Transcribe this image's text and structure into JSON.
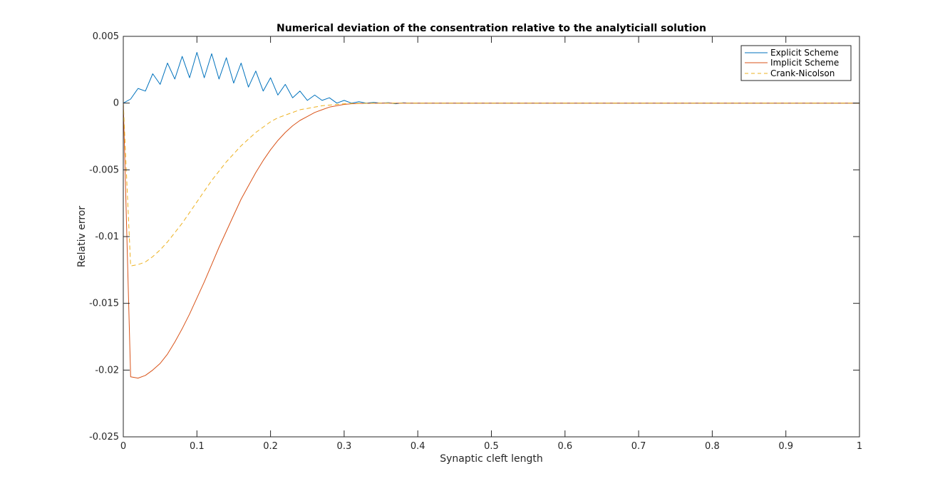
{
  "chart_data": {
    "type": "line",
    "title": "Numerical deviation of the consentration relative to the analyticiall solution",
    "xlabel": "Synaptic cleft length",
    "ylabel": "Relativ error",
    "xlim": [
      0,
      1
    ],
    "ylim": [
      -0.025,
      0.005
    ],
    "xticks": [
      0,
      0.1,
      0.2,
      0.3,
      0.4,
      0.5,
      0.6,
      0.7,
      0.8,
      0.9,
      1
    ],
    "xtick_labels": [
      "0",
      "0.1",
      "0.2",
      "0.3",
      "0.4",
      "0.5",
      "0.6",
      "0.7",
      "0.8",
      "0.9",
      "1"
    ],
    "yticks": [
      0.005,
      0,
      -0.005,
      -0.01,
      -0.015,
      -0.02,
      -0.025
    ],
    "ytick_labels": [
      "0.005",
      "0",
      "-0.005",
      "-0.01",
      "-0.015",
      "-0.02",
      "-0.025"
    ],
    "grid": false,
    "legend_position": "top-right",
    "series": [
      {
        "name": "Explicit Scheme",
        "color": "#0072BD",
        "dash": "solid",
        "x": [
          0,
          0.01,
          0.02,
          0.03,
          0.04,
          0.05,
          0.06,
          0.07,
          0.08,
          0.09,
          0.1,
          0.11,
          0.12,
          0.13,
          0.14,
          0.15,
          0.16,
          0.17,
          0.18,
          0.19,
          0.2,
          0.21,
          0.22,
          0.23,
          0.24,
          0.25,
          0.26,
          0.27,
          0.28,
          0.29,
          0.3,
          0.31,
          0.32,
          0.33,
          0.34,
          0.35,
          0.36,
          0.37,
          0.38,
          0.39,
          0.4,
          0.45,
          0.5,
          0.6,
          0.7,
          0.8,
          0.9,
          1.0
        ],
        "y": [
          0,
          0.0003,
          0.0011,
          0.0009,
          0.0022,
          0.0014,
          0.003,
          0.0018,
          0.0035,
          0.0019,
          0.0038,
          0.0019,
          0.0037,
          0.0018,
          0.0034,
          0.0015,
          0.003,
          0.0012,
          0.0024,
          0.0009,
          0.0019,
          0.0006,
          0.0014,
          0.0004,
          0.0009,
          0.0002,
          0.0006,
          0.0002,
          0.0004,
          0,
          0.0002,
          0,
          0.0001,
          0,
          5e-05,
          0,
          3e-05,
          -5e-05,
          2e-05,
          0,
          0,
          0,
          0,
          0,
          0,
          0,
          0,
          0
        ]
      },
      {
        "name": "Implicit Scheme",
        "color": "#D95319",
        "dash": "solid",
        "x": [
          0,
          0.01,
          0.02,
          0.03,
          0.04,
          0.05,
          0.06,
          0.07,
          0.08,
          0.09,
          0.1,
          0.11,
          0.12,
          0.13,
          0.14,
          0.15,
          0.16,
          0.17,
          0.18,
          0.19,
          0.2,
          0.21,
          0.22,
          0.23,
          0.24,
          0.25,
          0.26,
          0.27,
          0.28,
          0.29,
          0.3,
          0.31,
          0.32,
          0.33,
          0.34,
          0.35,
          0.4,
          0.5,
          0.6,
          0.7,
          0.8,
          0.9,
          1.0
        ],
        "y": [
          0,
          -0.0205,
          -0.0206,
          -0.0204,
          -0.02,
          -0.0195,
          -0.0188,
          -0.0179,
          -0.0169,
          -0.0158,
          -0.0146,
          -0.0134,
          -0.0121,
          -0.0108,
          -0.0096,
          -0.0084,
          -0.0072,
          -0.0062,
          -0.0052,
          -0.0043,
          -0.0035,
          -0.0028,
          -0.0022,
          -0.0017,
          -0.0013,
          -0.001,
          -0.0007,
          -0.0005,
          -0.0003,
          -0.0002,
          -0.0001,
          -5e-05,
          -3e-05,
          -2e-05,
          -1e-05,
          0,
          0,
          0,
          0,
          0,
          0,
          0,
          0
        ]
      },
      {
        "name": "Crank-Nicolson",
        "color": "#EDB120",
        "dash": "dashed",
        "x": [
          0,
          0.01,
          0.02,
          0.03,
          0.04,
          0.05,
          0.06,
          0.07,
          0.08,
          0.09,
          0.1,
          0.11,
          0.12,
          0.13,
          0.14,
          0.15,
          0.16,
          0.17,
          0.18,
          0.19,
          0.2,
          0.21,
          0.22,
          0.23,
          0.24,
          0.25,
          0.26,
          0.27,
          0.28,
          0.29,
          0.3,
          0.31,
          0.32,
          0.35,
          0.4,
          0.5,
          0.6,
          0.7,
          0.8,
          0.9,
          1.0
        ],
        "y": [
          0,
          -0.0122,
          -0.0121,
          -0.0119,
          -0.0115,
          -0.011,
          -0.0104,
          -0.0097,
          -0.009,
          -0.0082,
          -0.0074,
          -0.0066,
          -0.0058,
          -0.0051,
          -0.0044,
          -0.0038,
          -0.0032,
          -0.0027,
          -0.0022,
          -0.0018,
          -0.0014,
          -0.0011,
          -0.0009,
          -0.0007,
          -0.0005,
          -0.0004,
          -0.0003,
          -0.0002,
          -0.00015,
          -0.0001,
          -5e-05,
          -3e-05,
          -2e-05,
          0,
          0,
          0,
          0,
          0,
          0,
          0,
          0
        ]
      }
    ]
  }
}
